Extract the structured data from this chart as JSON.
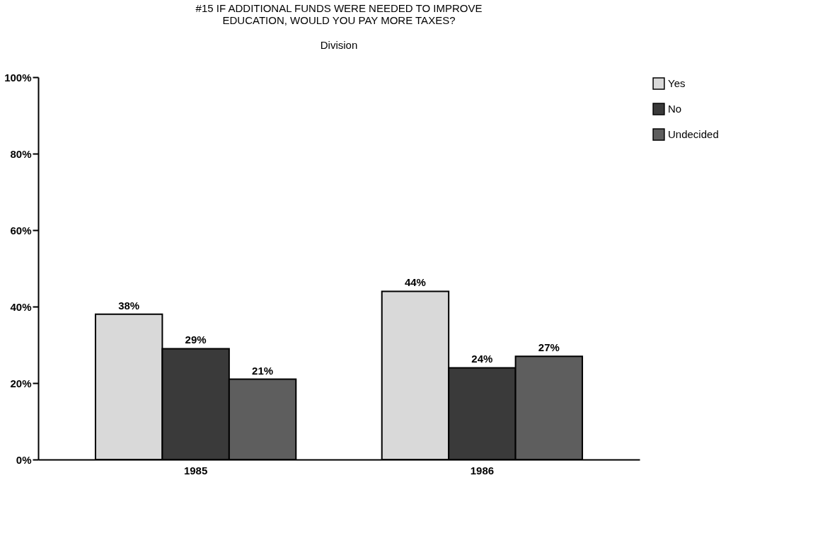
{
  "chart_data": {
    "type": "bar",
    "title": "#15 IF ADDITIONAL FUNDS WERE NEEDED TO IMPROVE\nEDUCATION, WOULD YOU PAY MORE TAXES?",
    "subtitle": "Division",
    "categories": [
      "1985",
      "1986"
    ],
    "series": [
      {
        "name": "Yes",
        "color": "#d9d9d9",
        "values": [
          38,
          44
        ],
        "value_labels": [
          "38%",
          "44%"
        ]
      },
      {
        "name": "No",
        "color": "#3a3a3a",
        "values": [
          29,
          24
        ],
        "value_labels": [
          "29%",
          "24%"
        ]
      },
      {
        "name": "Undecided",
        "color": "#5e5e5e",
        "values": [
          21,
          27
        ],
        "value_labels": [
          "21%",
          "27%"
        ]
      }
    ],
    "ylim": [
      0,
      100
    ],
    "yticks": [
      {
        "value": 0,
        "label": "0%"
      },
      {
        "value": 20,
        "label": "20%"
      },
      {
        "value": 40,
        "label": "40%"
      },
      {
        "value": 60,
        "label": "60%"
      },
      {
        "value": 80,
        "label": "80%"
      },
      {
        "value": 100,
        "label": "100%"
      }
    ],
    "grid": false,
    "legend": "right"
  }
}
